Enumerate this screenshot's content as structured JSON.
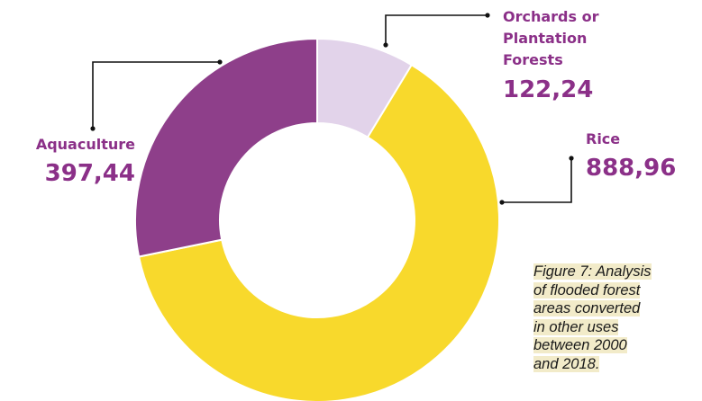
{
  "caption_lines": [
    "Figure 7: Analysis",
    "of flooded forest",
    "areas converted",
    "in other uses",
    "between 2000",
    "and 2018."
  ],
  "colors": {
    "label_text": "#8b3088",
    "leader": "#111111",
    "slice_border": "#ffffff",
    "caption_highlight": "#f2ebc9"
  },
  "chart_data": {
    "type": "pie",
    "variant": "donut",
    "categories": [
      "Orchards or Plantation Forests",
      "Rice",
      "Aquaculture"
    ],
    "values": [
      122.24,
      888.96,
      397.44
    ],
    "display_values": [
      "122,24",
      "888,96",
      "397,44"
    ],
    "label_lines": [
      [
        "Orchards or",
        "Plantation",
        "Forests"
      ],
      [
        "Rice"
      ],
      [
        "Aquaculture"
      ]
    ],
    "colors": [
      "#e2d3ea",
      "#f8d92c",
      "#8e3f8a"
    ],
    "start_angle_deg": 0,
    "direction": "clockwise",
    "legend": "none",
    "title": ""
  }
}
